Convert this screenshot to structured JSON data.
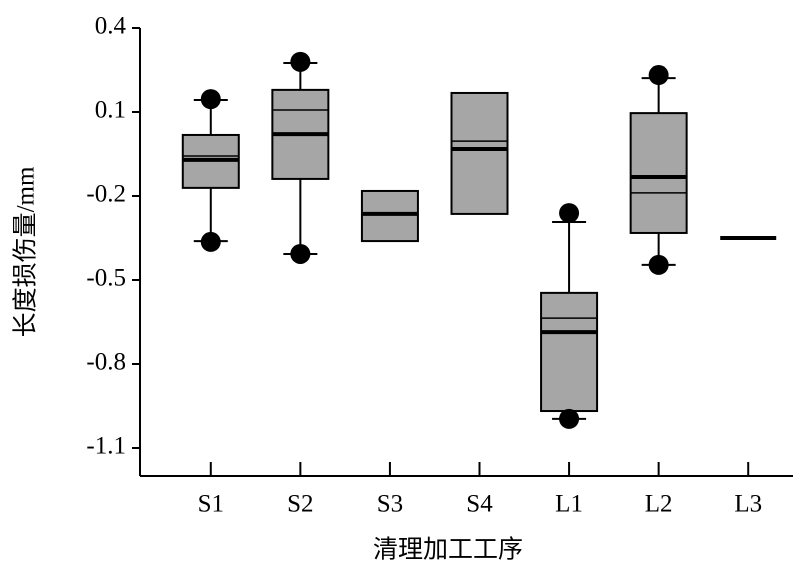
{
  "chart_data": {
    "type": "box",
    "x_label": "清理加工工序",
    "y_label": "长度损伤量/mm",
    "categories": [
      "S1",
      "S2",
      "S3",
      "S4",
      "L1",
      "L2",
      "L3"
    ],
    "color": "#a6a6a6",
    "boxes": [
      {
        "whisker_low": -0.361,
        "q1": -0.171,
        "median": -0.071,
        "mean": -0.057,
        "q3": 0.018,
        "whisker_high": 0.143,
        "outliers": [
          0.146,
          -0.364
        ]
      },
      {
        "whisker_low": -0.407,
        "q1": -0.139,
        "median": 0.021,
        "mean": 0.107,
        "q3": 0.179,
        "whisker_high": 0.275,
        "outliers": [
          0.279,
          -0.407
        ]
      },
      {
        "whisker_low": null,
        "q1": -0.361,
        "median": -0.264,
        "mean": null,
        "q3": -0.182,
        "whisker_high": null,
        "outliers": []
      },
      {
        "whisker_low": null,
        "q1": -0.264,
        "median": -0.032,
        "mean": -0.004,
        "q3": 0.168,
        "whisker_high": null,
        "outliers": []
      },
      {
        "whisker_low": -0.996,
        "q1": -0.968,
        "median": -0.686,
        "mean": -0.636,
        "q3": -0.546,
        "whisker_high": -0.293,
        "outliers": [
          -0.261,
          -0.996
        ]
      },
      {
        "whisker_low": -0.446,
        "q1": -0.332,
        "median": -0.132,
        "mean": -0.189,
        "q3": 0.096,
        "whisker_high": 0.221,
        "outliers": [
          0.232,
          -0.446
        ]
      },
      {
        "whisker_low": null,
        "q1": null,
        "median": -0.35,
        "mean": null,
        "q3": null,
        "whisker_high": null,
        "outliers": []
      }
    ],
    "ylim": [
      -1.2,
      0.4
    ],
    "yticks": [
      0.4,
      0.1,
      -0.2,
      -0.5,
      -0.8,
      -1.1
    ]
  }
}
